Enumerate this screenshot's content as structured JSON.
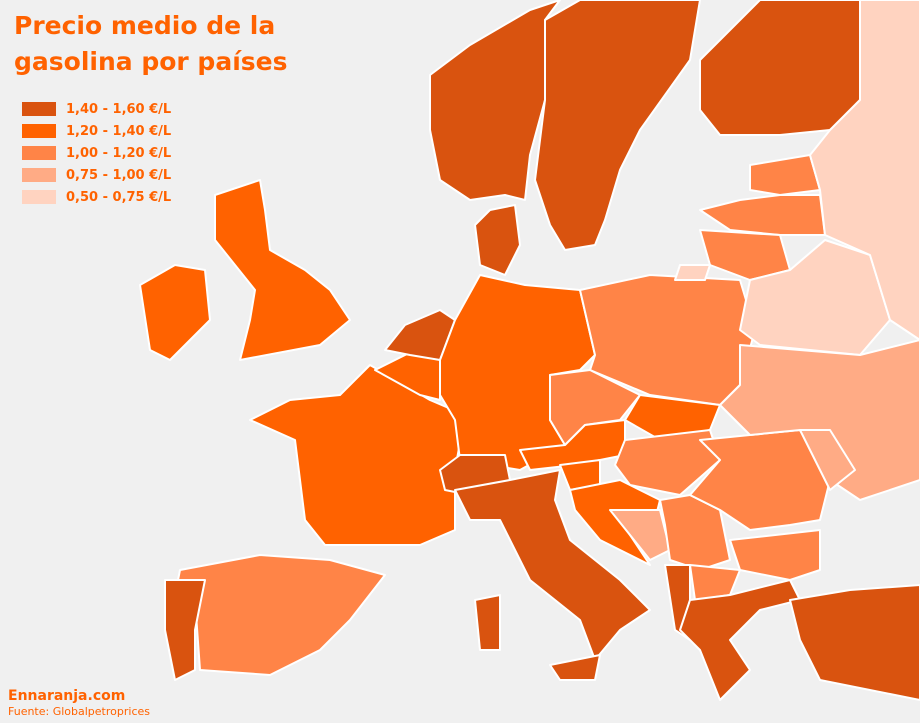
{
  "header": {
    "title": "Precio medio de la gasolina por países"
  },
  "legend": [
    {
      "label": "1,40 - 1,60 €/L",
      "color": "#d9530f"
    },
    {
      "label": "1,20 - 1,40 €/L",
      "color": "#ff6200"
    },
    {
      "label": "1,00 - 1,20 €/L",
      "color": "#ff8447"
    },
    {
      "label": "0,75 - 1,00 €/L",
      "color": "#ffab85"
    },
    {
      "label": "0,50 - 0,75 €/L",
      "color": "#ffd3c0"
    }
  ],
  "footer": {
    "site": "Ennaranja.com",
    "source": "Fuente: Globalpetroprices"
  }
}
